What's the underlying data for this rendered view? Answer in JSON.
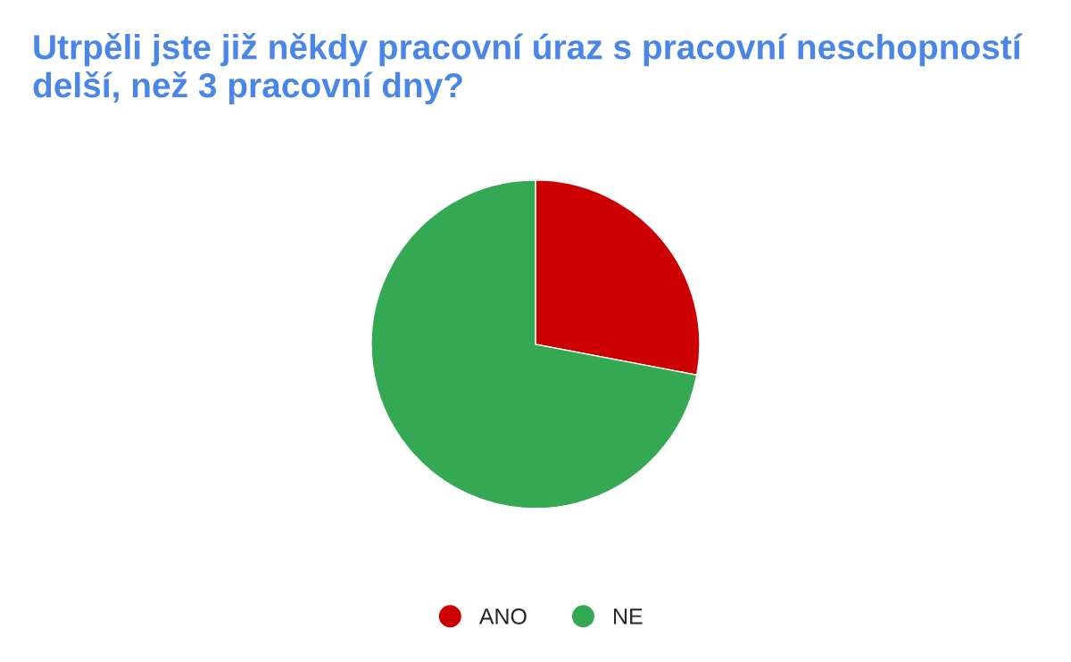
{
  "chart_data": {
    "type": "pie",
    "title": "Utrpěli jste již někdy pracovní úraz s pracovní neschopností delší, než 3 pracovní dny?",
    "categories": [
      "ANO",
      "NE"
    ],
    "values": [
      28,
      72
    ],
    "colors": [
      "#cc0000",
      "#34a853"
    ],
    "legend": "bottom"
  }
}
